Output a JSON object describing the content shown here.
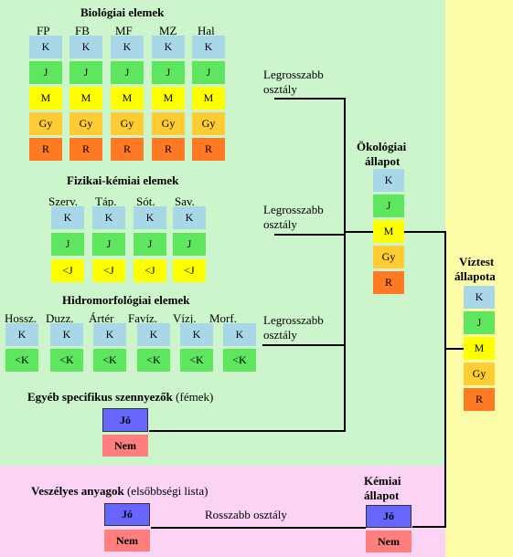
{
  "colors": {
    "green_area": "#ccf5cc",
    "pink_area": "#fbd3f5",
    "yellow_area": "#fbfba8",
    "K": "#a8d8e8",
    "J": "#5ee65e",
    "M": "#ffff00",
    "Gy": "#ffcc33",
    "R": "#ff7a22",
    "Jo": "#6666ff",
    "Nem": "#ff7f7f"
  },
  "grade": {
    "K": "K",
    "J": "J",
    "M": "M",
    "Gy": "Gy",
    "R": "R",
    "ltJ": "<J",
    "ltK": "<K",
    "Jo": "Jó",
    "Nem": "Nem"
  },
  "bio": {
    "title": "Biológiai elemek",
    "cols": [
      "FP",
      "FB",
      "MF",
      "MZ",
      "Hal"
    ]
  },
  "fiz": {
    "title": "Fizikai-kémiai elemek",
    "cols": [
      "Szerv.",
      "Táp.",
      "Sót.",
      "Sav."
    ]
  },
  "hidro": {
    "title": "Hidromorfológiai elemek",
    "cols": [
      "Hossz.",
      "Duzz.",
      "Ártér",
      "Favíz.",
      "Vízj.",
      "Morf."
    ]
  },
  "egyeb": {
    "title_bold": "Egyéb specifikus szennyezők",
    "title_rest": " (fémek)"
  },
  "veszelyes": {
    "title_bold": "Veszélyes anyagok",
    "title_rest": " (elsőbbségi lista)"
  },
  "legrosszabb": [
    "Legrosszabb",
    "osztály"
  ],
  "rosszabb": "Rosszabb osztály",
  "okologiai": [
    "Ökológiai",
    "állapot"
  ],
  "kemiai": [
    "Kémiai",
    "állapot"
  ],
  "viztest": [
    "Víztest",
    "állapota"
  ]
}
